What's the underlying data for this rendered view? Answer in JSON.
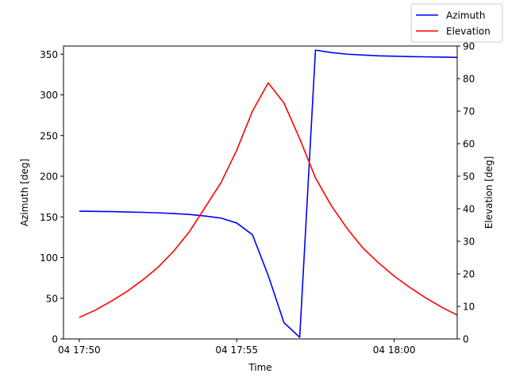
{
  "chart_data": {
    "type": "line",
    "xlabel": "Time",
    "ylabel_left": "Azimuth [deg]",
    "ylabel_right": "Elevation [deg]",
    "x_ticks": [
      "04 17:50",
      "04 17:55",
      "04 18:00"
    ],
    "x_tick_minutes": [
      0,
      5,
      10
    ],
    "xlim_minutes": [
      -0.5,
      12.0
    ],
    "ylim_left": [
      0,
      360
    ],
    "y_ticks_left": [
      0,
      50,
      100,
      150,
      200,
      250,
      300,
      350
    ],
    "ylim_right": [
      0,
      90
    ],
    "y_ticks_right": [
      0,
      10,
      20,
      30,
      40,
      50,
      60,
      70,
      80,
      90
    ],
    "grid": false,
    "legend_position": "top-right",
    "series": [
      {
        "name": "Azimuth",
        "color": "#0000ff",
        "axis": "left",
        "x_minutes": [
          0,
          0.5,
          1,
          1.5,
          2,
          2.5,
          3,
          3.5,
          4,
          4.5,
          5,
          5.5,
          6,
          6.5,
          7,
          7.5,
          8,
          8.5,
          9,
          9.5,
          10,
          10.5,
          11,
          11.5,
          12
        ],
        "values": [
          157,
          156.8,
          156.5,
          156,
          155.6,
          155,
          154.1,
          153,
          151,
          148.5,
          142.5,
          128,
          78,
          20,
          2,
          355,
          352,
          350,
          349,
          348,
          347.5,
          347,
          346.7,
          346.4,
          346
        ]
      },
      {
        "name": "Elevation",
        "color": "#ff0000",
        "axis": "right",
        "x_minutes": [
          0,
          0.5,
          1,
          1.5,
          2,
          2.5,
          3,
          3.5,
          4,
          4.5,
          5,
          5.5,
          6,
          6.5,
          7,
          7.5,
          8,
          8.5,
          9,
          9.5,
          10,
          10.5,
          11,
          11.5,
          12
        ],
        "values": [
          6.6,
          8.8,
          11.5,
          14.5,
          18,
          22,
          27,
          33,
          40.5,
          48,
          58,
          70,
          78.7,
          72.5,
          61.5,
          49.5,
          41,
          34,
          28,
          23.4,
          19.3,
          15.8,
          12.6,
          9.8,
          7.3
        ]
      }
    ]
  }
}
